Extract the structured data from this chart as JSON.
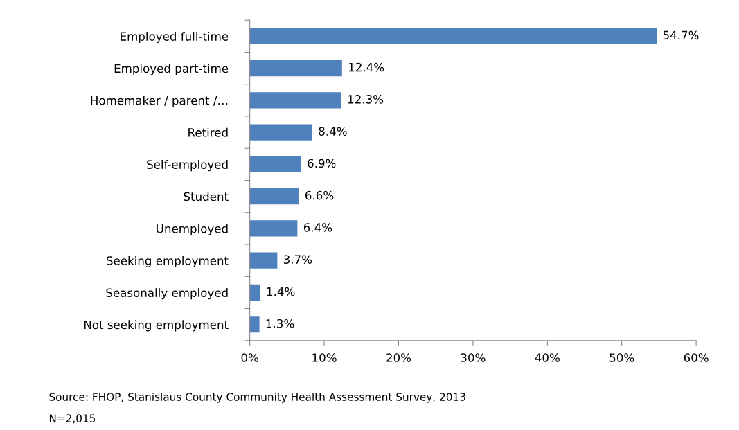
{
  "chart_data": {
    "type": "bar",
    "orientation": "horizontal",
    "categories": [
      "Employed full-time",
      "Employed part-time",
      "Homemaker / parent /…",
      "Retired",
      "Self-employed",
      "Student",
      "Unemployed",
      "Seeking employment",
      "Seasonally employed",
      "Not seeking employment"
    ],
    "values": [
      54.7,
      12.4,
      12.3,
      8.4,
      6.9,
      6.6,
      6.4,
      3.7,
      1.4,
      1.3
    ],
    "value_labels": [
      "54.7%",
      "12.4%",
      "12.3%",
      "8.4%",
      "6.9%",
      "6.6%",
      "6.4%",
      "3.7%",
      "1.4%",
      "1.3%"
    ],
    "color": "#4f81bd",
    "xlim": [
      0,
      60
    ],
    "xticks": [
      {
        "value": 0,
        "label": "0%"
      },
      {
        "value": 10,
        "label": "10%"
      },
      {
        "value": 20,
        "label": "20%"
      },
      {
        "value": 30,
        "label": "30%"
      },
      {
        "value": 40,
        "label": "40%"
      },
      {
        "value": 50,
        "label": "50%"
      },
      {
        "value": 60,
        "label": "60%"
      }
    ],
    "grid": false,
    "legend": false,
    "annotations": [
      "Source: FHOP, Stanislaus County Community Health Assessment Survey, 2013",
      "N=2,015"
    ]
  }
}
